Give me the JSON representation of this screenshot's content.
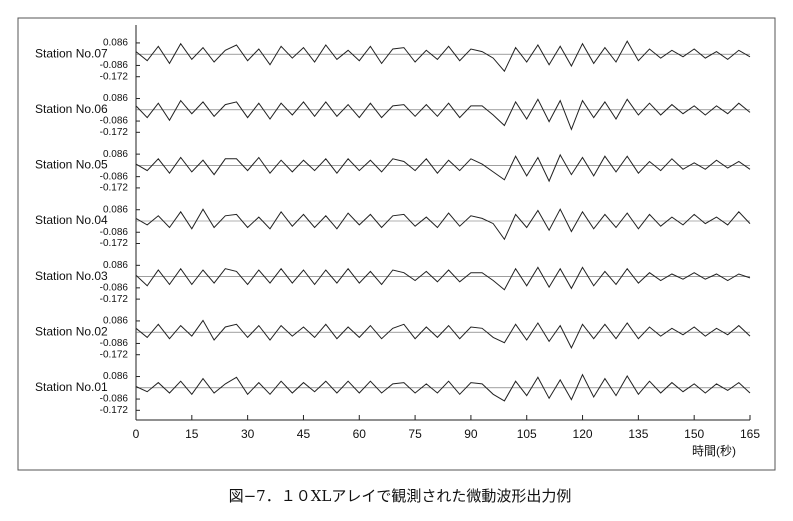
{
  "chart_data": {
    "type": "line",
    "caption": "図−7．１０XLアレイで観測された微動波形出力例",
    "x_label": "時間(秒)",
    "color": "#222222",
    "xlim": [
      0,
      165
    ],
    "xticks": [
      0,
      15,
      30,
      45,
      60,
      75,
      90,
      105,
      120,
      135,
      150,
      165
    ],
    "ylim": [
      -0.22,
      0.2
    ],
    "yticks": [
      0.086,
      -0.086,
      -0.172
    ],
    "x": [
      0,
      3,
      6,
      9,
      12,
      15,
      18,
      21,
      24,
      27,
      30,
      33,
      36,
      39,
      42,
      45,
      48,
      51,
      54,
      57,
      60,
      63,
      66,
      69,
      72,
      75,
      78,
      81,
      84,
      87,
      90,
      93,
      96,
      99,
      102,
      105,
      108,
      111,
      114,
      117,
      120,
      123,
      126,
      129,
      132,
      135,
      138,
      141,
      144,
      147,
      150,
      153,
      156,
      159,
      162,
      165
    ],
    "series": [
      {
        "name": "Station No.07",
        "values": [
          0.02,
          -0.05,
          0.06,
          -0.07,
          0.08,
          -0.04,
          0.05,
          -0.06,
          0.03,
          0.07,
          -0.05,
          0.04,
          -0.08,
          0.06,
          -0.03,
          0.05,
          -0.06,
          0.07,
          -0.04,
          0.03,
          -0.05,
          0.06,
          -0.07,
          0.04,
          0.05,
          -0.06,
          0.03,
          -0.04,
          0.06,
          -0.05,
          0.04,
          0.02,
          -0.03,
          -0.13,
          0.05,
          -0.06,
          0.07,
          -0.08,
          0.06,
          -0.09,
          0.08,
          -0.07,
          0.05,
          -0.06,
          0.1,
          -0.05,
          0.04,
          -0.03,
          0.03,
          -0.02,
          0.04,
          -0.03,
          0.02,
          -0.04,
          0.03,
          -0.02
        ]
      },
      {
        "name": "Station No.06",
        "values": [
          0.03,
          -0.06,
          0.05,
          -0.08,
          0.07,
          -0.03,
          0.06,
          -0.05,
          0.04,
          0.06,
          -0.06,
          0.05,
          -0.07,
          0.05,
          -0.04,
          0.06,
          -0.05,
          0.06,
          -0.05,
          0.04,
          -0.06,
          0.05,
          -0.06,
          0.03,
          0.04,
          -0.05,
          0.04,
          -0.05,
          0.05,
          -0.06,
          0.03,
          0.03,
          -0.04,
          -0.12,
          0.06,
          -0.07,
          0.08,
          -0.09,
          0.07,
          -0.15,
          0.07,
          -0.06,
          0.06,
          -0.07,
          0.08,
          -0.04,
          0.05,
          -0.04,
          0.04,
          -0.03,
          0.03,
          -0.04,
          0.03,
          -0.03,
          0.05,
          -0.02
        ]
      },
      {
        "name": "Station No.05",
        "values": [
          0.01,
          -0.04,
          0.05,
          -0.06,
          0.06,
          -0.05,
          0.04,
          -0.07,
          0.05,
          0.05,
          -0.04,
          0.06,
          -0.06,
          0.04,
          -0.05,
          0.04,
          -0.04,
          0.05,
          -0.06,
          0.05,
          -0.04,
          0.04,
          -0.05,
          0.05,
          0.03,
          -0.04,
          0.05,
          -0.06,
          0.04,
          -0.04,
          0.05,
          0.01,
          -0.05,
          -0.11,
          0.07,
          -0.08,
          0.06,
          -0.12,
          0.08,
          -0.07,
          0.06,
          -0.08,
          0.07,
          -0.05,
          0.07,
          -0.06,
          0.03,
          -0.04,
          0.05,
          -0.03,
          0.02,
          -0.03,
          0.04,
          -0.02,
          0.03,
          -0.03
        ]
      },
      {
        "name": "Station No.04",
        "values": [
          0.02,
          -0.03,
          0.04,
          -0.05,
          0.07,
          -0.06,
          0.09,
          -0.05,
          0.04,
          0.05,
          -0.05,
          0.03,
          -0.06,
          0.07,
          -0.04,
          0.05,
          -0.05,
          0.04,
          -0.06,
          0.06,
          -0.03,
          0.05,
          -0.05,
          0.04,
          0.05,
          -0.04,
          0.03,
          -0.05,
          0.06,
          -0.04,
          0.04,
          0.02,
          -0.02,
          -0.14,
          0.05,
          -0.05,
          0.08,
          -0.07,
          0.09,
          -0.08,
          0.07,
          -0.06,
          0.05,
          -0.05,
          0.06,
          -0.06,
          0.05,
          -0.04,
          0.03,
          -0.03,
          0.05,
          -0.02,
          0.03,
          -0.03,
          0.07,
          -0.02
        ]
      },
      {
        "name": "Station No.03",
        "values": [
          0.01,
          -0.07,
          0.05,
          -0.06,
          0.06,
          -0.06,
          0.05,
          -0.05,
          0.06,
          0.04,
          -0.06,
          0.05,
          -0.05,
          0.06,
          -0.05,
          0.05,
          -0.06,
          0.05,
          -0.05,
          0.06,
          -0.05,
          0.04,
          -0.06,
          0.05,
          0.03,
          -0.03,
          0.04,
          -0.04,
          0.05,
          -0.04,
          0.03,
          0.03,
          -0.03,
          -0.1,
          0.06,
          -0.07,
          0.07,
          -0.08,
          0.06,
          -0.09,
          0.07,
          -0.07,
          0.04,
          -0.06,
          0.06,
          -0.05,
          0.03,
          -0.03,
          0.02,
          -0.02,
          0.03,
          -0.02,
          0.02,
          -0.03,
          0.02,
          -0.01
        ]
      },
      {
        "name": "Station No.02",
        "values": [
          0.03,
          -0.04,
          0.06,
          -0.05,
          0.05,
          -0.03,
          0.09,
          -0.06,
          0.04,
          0.06,
          -0.04,
          0.05,
          -0.06,
          0.05,
          -0.03,
          0.04,
          -0.04,
          0.06,
          -0.05,
          0.04,
          -0.04,
          0.05,
          -0.05,
          0.03,
          0.06,
          -0.05,
          0.04,
          -0.04,
          0.05,
          -0.05,
          0.04,
          0.03,
          -0.04,
          -0.08,
          0.06,
          -0.06,
          0.07,
          -0.07,
          0.05,
          -0.12,
          0.06,
          -0.05,
          0.06,
          -0.05,
          0.07,
          -0.05,
          0.04,
          -0.03,
          0.03,
          -0.02,
          0.04,
          -0.03,
          0.03,
          -0.02,
          0.05,
          -0.03
        ]
      },
      {
        "name": "Station No.01",
        "values": [
          0.01,
          -0.03,
          0.04,
          -0.04,
          0.05,
          -0.05,
          0.07,
          -0.04,
          0.03,
          0.08,
          -0.05,
          0.04,
          -0.05,
          0.05,
          -0.04,
          0.04,
          -0.03,
          0.05,
          -0.04,
          0.05,
          -0.04,
          0.05,
          -0.04,
          0.03,
          0.04,
          -0.04,
          0.03,
          -0.04,
          0.05,
          -0.05,
          0.04,
          0.03,
          -0.05,
          -0.1,
          0.05,
          -0.06,
          0.08,
          -0.08,
          0.06,
          -0.09,
          0.1,
          -0.07,
          0.07,
          -0.06,
          0.09,
          -0.05,
          0.05,
          -0.04,
          0.04,
          -0.03,
          0.03,
          -0.04,
          0.03,
          -0.02,
          0.04,
          -0.04
        ]
      }
    ]
  }
}
